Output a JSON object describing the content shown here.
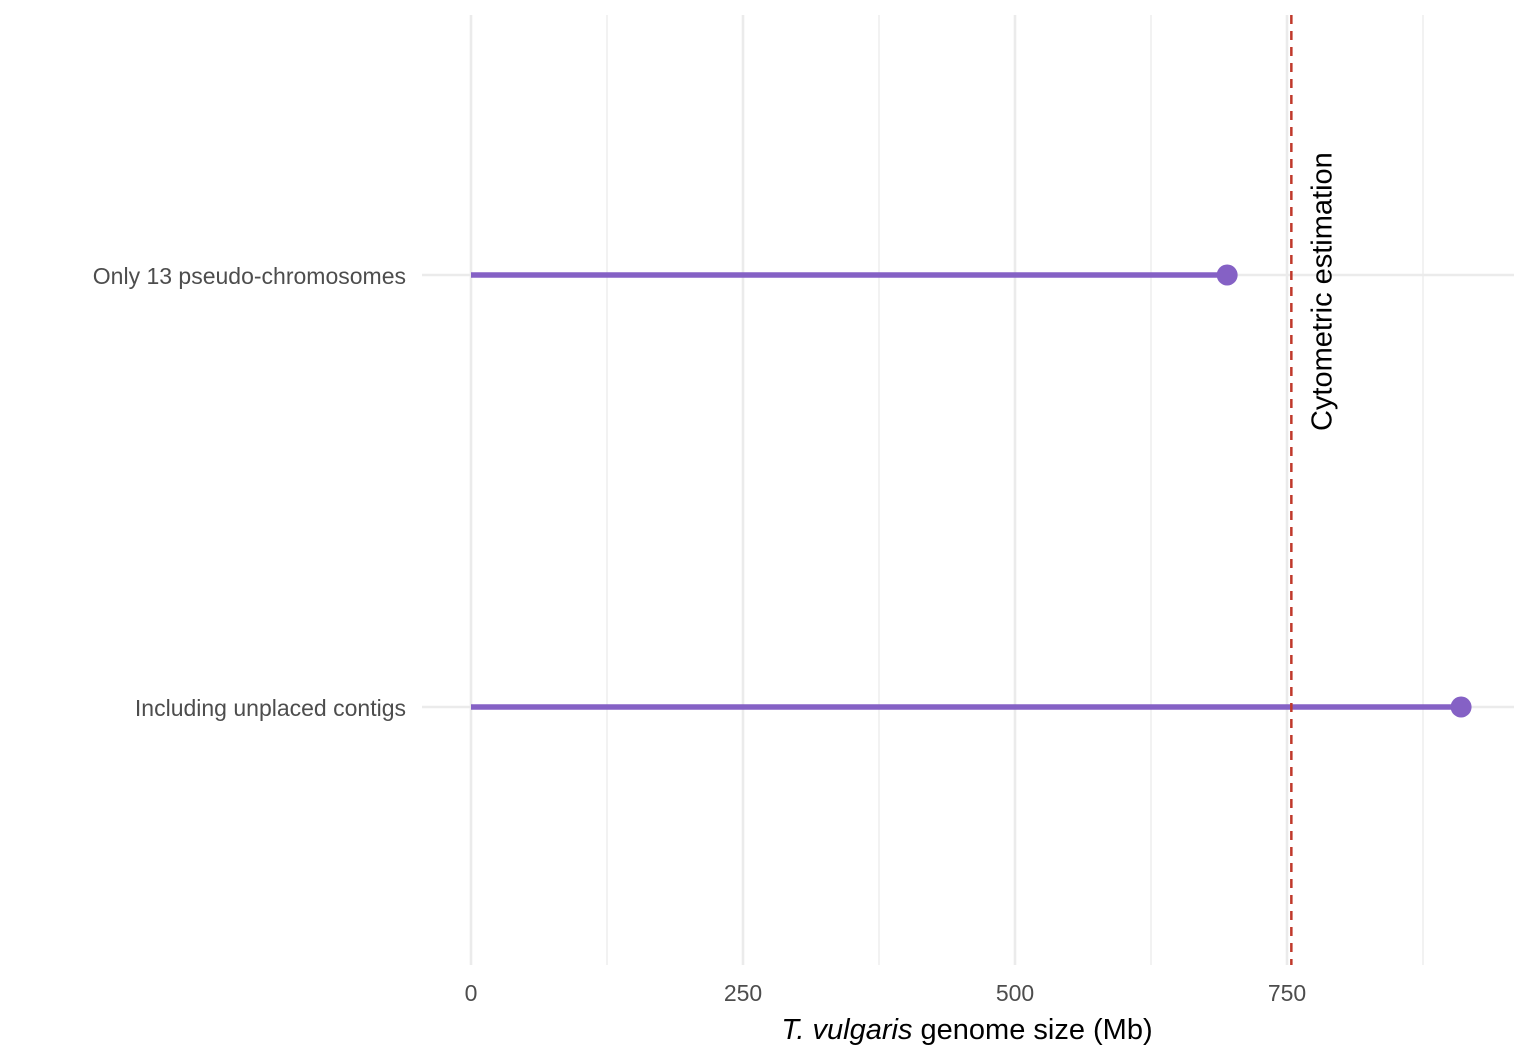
{
  "chart_data": {
    "type": "lollipop",
    "categories": [
      "Only 13 pseudo-chromosomes",
      "Including unplaced contigs"
    ],
    "values": [
      695,
      910
    ],
    "xlabel_italic": "T. vulgaris",
    "xlabel_rest": " genome size (Mb)",
    "xlim": [
      0,
      955
    ],
    "xticks": [
      0,
      250,
      500,
      750
    ],
    "xtick_labels": [
      "0",
      "250",
      "500",
      "750"
    ],
    "grid": true,
    "reference_line": {
      "value": 754,
      "label": "Cytometric estimation",
      "style": "dashed"
    }
  },
  "colors": {
    "series": "#8561c5",
    "reference_line": "#c0392b",
    "grid": "#ebebeb",
    "tick_text": "#4d4d4d"
  }
}
